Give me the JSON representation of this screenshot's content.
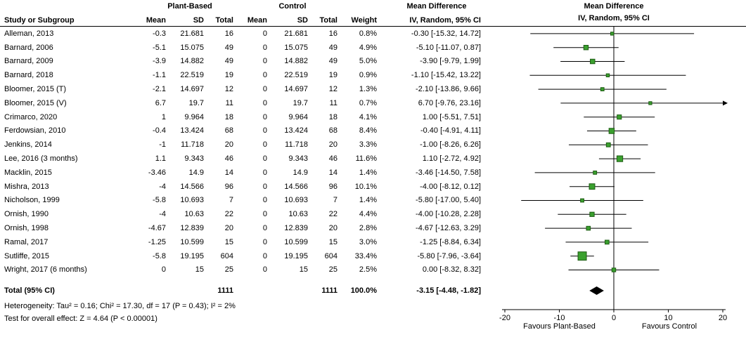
{
  "headers": {
    "group1": "Plant-Based",
    "group2": "Control",
    "md_text_col": "Mean Difference",
    "md_plot_col": "Mean Difference",
    "study": "Study or Subgroup",
    "mean": "Mean",
    "sd": "SD",
    "total": "Total",
    "weight": "Weight",
    "iv_random": "IV, Random, 95% CI",
    "iv_random_plot": "IV, Random, 95% CI"
  },
  "chart_data": {
    "type": "forest",
    "effect_measure": "Mean Difference",
    "model": "IV, Random, 95% CI",
    "studies": [
      {
        "label": "Alleman, 2013",
        "mean1": "-0.3",
        "sd1": "21.681",
        "n1": "16",
        "mean2": "0",
        "sd2": "21.681",
        "n2": "16",
        "weight": "0.8%",
        "ci_text": "-0.30 [-15.32, 14.72]",
        "est": -0.3,
        "lo": -15.32,
        "hi": 14.72,
        "w": 0.8
      },
      {
        "label": "Barnard, 2006",
        "mean1": "-5.1",
        "sd1": "15.075",
        "n1": "49",
        "mean2": "0",
        "sd2": "15.075",
        "n2": "49",
        "weight": "4.9%",
        "ci_text": "-5.10 [-11.07, 0.87]",
        "est": -5.1,
        "lo": -11.07,
        "hi": 0.87,
        "w": 4.9
      },
      {
        "label": "Barnard, 2009",
        "mean1": "-3.9",
        "sd1": "14.882",
        "n1": "49",
        "mean2": "0",
        "sd2": "14.882",
        "n2": "49",
        "weight": "5.0%",
        "ci_text": "-3.90 [-9.79, 1.99]",
        "est": -3.9,
        "lo": -9.79,
        "hi": 1.99,
        "w": 5.0
      },
      {
        "label": "Barnard, 2018",
        "mean1": "-1.1",
        "sd1": "22.519",
        "n1": "19",
        "mean2": "0",
        "sd2": "22.519",
        "n2": "19",
        "weight": "0.9%",
        "ci_text": "-1.10 [-15.42, 13.22]",
        "est": -1.1,
        "lo": -15.42,
        "hi": 13.22,
        "w": 0.9
      },
      {
        "label": "Bloomer, 2015 (T)",
        "mean1": "-2.1",
        "sd1": "14.697",
        "n1": "12",
        "mean2": "0",
        "sd2": "14.697",
        "n2": "12",
        "weight": "1.3%",
        "ci_text": "-2.10 [-13.86, 9.66]",
        "est": -2.1,
        "lo": -13.86,
        "hi": 9.66,
        "w": 1.3
      },
      {
        "label": "Bloomer, 2015 (V)",
        "mean1": "6.7",
        "sd1": "19.7",
        "n1": "11",
        "mean2": "0",
        "sd2": "19.7",
        "n2": "11",
        "weight": "0.7%",
        "ci_text": "6.70 [-9.76, 23.16]",
        "est": 6.7,
        "lo": -9.76,
        "hi": 23.16,
        "w": 0.7
      },
      {
        "label": "Crimarco, 2020",
        "mean1": "1",
        "sd1": "9.964",
        "n1": "18",
        "mean2": "0",
        "sd2": "9.964",
        "n2": "18",
        "weight": "4.1%",
        "ci_text": "1.00 [-5.51, 7.51]",
        "est": 1.0,
        "lo": -5.51,
        "hi": 7.51,
        "w": 4.1
      },
      {
        "label": "Ferdowsian, 2010",
        "mean1": "-0.4",
        "sd1": "13.424",
        "n1": "68",
        "mean2": "0",
        "sd2": "13.424",
        "n2": "68",
        "weight": "8.4%",
        "ci_text": "-0.40 [-4.91, 4.11]",
        "est": -0.4,
        "lo": -4.91,
        "hi": 4.11,
        "w": 8.4
      },
      {
        "label": "Jenkins, 2014",
        "mean1": "-1",
        "sd1": "11.718",
        "n1": "20",
        "mean2": "0",
        "sd2": "11.718",
        "n2": "20",
        "weight": "3.3%",
        "ci_text": "-1.00 [-8.26, 6.26]",
        "est": -1.0,
        "lo": -8.26,
        "hi": 6.26,
        "w": 3.3
      },
      {
        "label": "Lee, 2016 (3 months)",
        "mean1": "1.1",
        "sd1": "9.343",
        "n1": "46",
        "mean2": "0",
        "sd2": "9.343",
        "n2": "46",
        "weight": "11.6%",
        "ci_text": "1.10 [-2.72, 4.92]",
        "est": 1.1,
        "lo": -2.72,
        "hi": 4.92,
        "w": 11.6
      },
      {
        "label": "Macklin, 2015",
        "mean1": "-3.46",
        "sd1": "14.9",
        "n1": "14",
        "mean2": "0",
        "sd2": "14.9",
        "n2": "14",
        "weight": "1.4%",
        "ci_text": "-3.46 [-14.50, 7.58]",
        "est": -3.46,
        "lo": -14.5,
        "hi": 7.58,
        "w": 1.4
      },
      {
        "label": "Mishra, 2013",
        "mean1": "-4",
        "sd1": "14.566",
        "n1": "96",
        "mean2": "0",
        "sd2": "14.566",
        "n2": "96",
        "weight": "10.1%",
        "ci_text": "-4.00 [-8.12, 0.12]",
        "est": -4.0,
        "lo": -8.12,
        "hi": 0.12,
        "w": 10.1
      },
      {
        "label": "Nicholson, 1999",
        "mean1": "-5.8",
        "sd1": "10.693",
        "n1": "7",
        "mean2": "0",
        "sd2": "10.693",
        "n2": "7",
        "weight": "1.4%",
        "ci_text": "-5.80 [-17.00, 5.40]",
        "est": -5.8,
        "lo": -17.0,
        "hi": 5.4,
        "w": 1.4
      },
      {
        "label": "Ornish, 1990",
        "mean1": "-4",
        "sd1": "10.63",
        "n1": "22",
        "mean2": "0",
        "sd2": "10.63",
        "n2": "22",
        "weight": "4.4%",
        "ci_text": "-4.00 [-10.28, 2.28]",
        "est": -4.0,
        "lo": -10.28,
        "hi": 2.28,
        "w": 4.4
      },
      {
        "label": "Ornish, 1998",
        "mean1": "-4.67",
        "sd1": "12.839",
        "n1": "20",
        "mean2": "0",
        "sd2": "12.839",
        "n2": "20",
        "weight": "2.8%",
        "ci_text": "-4.67 [-12.63, 3.29]",
        "est": -4.67,
        "lo": -12.63,
        "hi": 3.29,
        "w": 2.8
      },
      {
        "label": "Ramal, 2017",
        "mean1": "-1.25",
        "sd1": "10.599",
        "n1": "15",
        "mean2": "0",
        "sd2": "10.599",
        "n2": "15",
        "weight": "3.0%",
        "ci_text": "-1.25 [-8.84, 6.34]",
        "est": -1.25,
        "lo": -8.84,
        "hi": 6.34,
        "w": 3.0
      },
      {
        "label": "Sutliffe, 2015",
        "mean1": "-5.8",
        "sd1": "19.195",
        "n1": "604",
        "mean2": "0",
        "sd2": "19.195",
        "n2": "604",
        "weight": "33.4%",
        "ci_text": "-5.80 [-7.96, -3.64]",
        "est": -5.8,
        "lo": -7.96,
        "hi": -3.64,
        "w": 33.4
      },
      {
        "label": "Wright, 2017 (6 months)",
        "mean1": "0",
        "sd1": "15",
        "n1": "25",
        "mean2": "0",
        "sd2": "15",
        "n2": "25",
        "weight": "2.5%",
        "ci_text": "0.00 [-8.32, 8.32]",
        "est": 0.0,
        "lo": -8.32,
        "hi": 8.32,
        "w": 2.5
      }
    ],
    "total": {
      "label": "Total (95% CI)",
      "n1": "1111",
      "n2": "1111",
      "weight": "100.0%",
      "ci_text": "-3.15 [-4.48, -1.82]",
      "est": -3.15,
      "lo": -4.48,
      "hi": -1.82
    },
    "axis": {
      "min": -20,
      "max": 20,
      "ticks": [
        -20,
        -10,
        0,
        10,
        20
      ],
      "left_label": "Favours Plant-Based",
      "right_label": "Favours Control"
    },
    "footnotes": {
      "heterogeneity": "Heterogeneity: Tau² = 0.16; Chi² = 17.30, df = 17 (P = 0.43); I² = 2%",
      "overall_effect": "Test for overall effect: Z = 4.64 (P < 0.00001)"
    },
    "colors": {
      "square": "#3aa02e",
      "square_border": "#1e5c14",
      "diamond": "#000000",
      "ci_line": "#000000"
    }
  }
}
